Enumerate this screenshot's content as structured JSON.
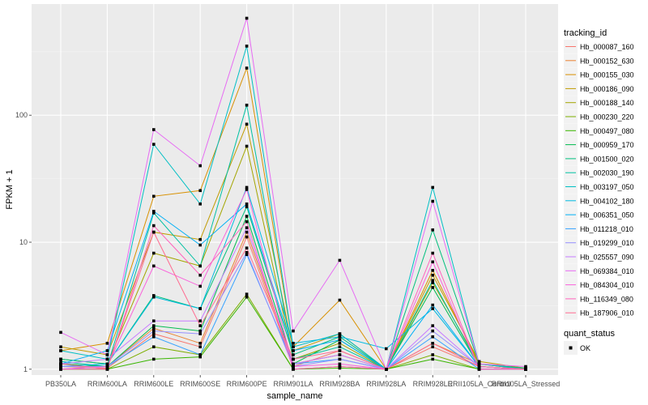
{
  "chart_data": {
    "type": "line",
    "xlabel": "sample_name",
    "ylabel": "FPKM + 1",
    "y_scale": "log10",
    "ylim": [
      0.9,
      750
    ],
    "y_ticks": [
      1,
      10,
      100
    ],
    "y_tick_labels": [
      "1",
      "10",
      "100"
    ],
    "grid": true,
    "legend_position": "right",
    "categories": [
      "PB350LA",
      "RRIM600LA",
      "RRIM600LE",
      "RRIM600SE",
      "RRIM600PE",
      "RRIM901LA",
      "RRIM928BA",
      "RRIM928LA",
      "RRIM928LE",
      "RRII105LA_Control",
      "RRII105LA_Stressed"
    ],
    "legend_title": "tracking_id",
    "shape_legend_title": "quant_status",
    "shape_legend_label": "OK",
    "series": [
      {
        "name": "Hb_000087_160",
        "color": "#F8766D",
        "values": [
          1.05,
          1.02,
          1.9,
          1.5,
          11.0,
          1.05,
          1.4,
          1.0,
          1.5,
          1.05,
          1.0
        ]
      },
      {
        "name": "Hb_000152_630",
        "color": "#EA8331",
        "values": [
          1.1,
          1.05,
          2.1,
          1.6,
          12.0,
          1.1,
          1.3,
          1.0,
          1.6,
          1.1,
          1.02
        ]
      },
      {
        "name": "Hb_000155_030",
        "color": "#D89000",
        "values": [
          1.4,
          1.6,
          23.0,
          25.5,
          235.0,
          1.5,
          3.5,
          1.0,
          6.0,
          1.1,
          1.0
        ]
      },
      {
        "name": "Hb_000186_090",
        "color": "#C09B00",
        "values": [
          1.5,
          1.3,
          12.0,
          10.5,
          85.0,
          1.4,
          1.9,
          1.0,
          5.5,
          1.15,
          1.02
        ]
      },
      {
        "name": "Hb_000188_140",
        "color": "#A3A500",
        "values": [
          1.2,
          1.1,
          8.2,
          6.5,
          57.0,
          1.2,
          1.6,
          1.0,
          4.8,
          1.1,
          1.0
        ]
      },
      {
        "name": "Hb_000230_220",
        "color": "#7CAE00",
        "values": [
          1.0,
          1.0,
          1.5,
          1.3,
          3.9,
          1.0,
          1.05,
          1.0,
          1.3,
          1.0,
          1.0
        ]
      },
      {
        "name": "Hb_000497_080",
        "color": "#39B600",
        "values": [
          1.0,
          1.0,
          1.2,
          1.25,
          3.7,
          1.0,
          1.02,
          1.0,
          1.2,
          1.0,
          1.0
        ]
      },
      {
        "name": "Hb_000959_170",
        "color": "#00BB4E",
        "values": [
          1.1,
          1.05,
          2.2,
          2.0,
          16.0,
          1.1,
          1.7,
          1.0,
          4.4,
          1.05,
          1.0
        ]
      },
      {
        "name": "Hb_001500_020",
        "color": "#00BF7D",
        "values": [
          1.2,
          1.1,
          3.8,
          3.0,
          19.0,
          1.3,
          1.8,
          1.0,
          12.5,
          1.1,
          1.02
        ]
      },
      {
        "name": "Hb_002030_190",
        "color": "#00C1A3",
        "values": [
          1.15,
          1.05,
          17.0,
          6.5,
          120.0,
          1.2,
          1.5,
          1.0,
          5.0,
          1.05,
          1.0
        ]
      },
      {
        "name": "Hb_003197_050",
        "color": "#00BFC4",
        "values": [
          1.4,
          1.2,
          59.0,
          20.0,
          350.0,
          1.5,
          1.9,
          1.0,
          27.0,
          1.1,
          1.0
        ]
      },
      {
        "name": "Hb_004102_180",
        "color": "#00BAE0",
        "values": [
          1.05,
          1.1,
          3.7,
          3.0,
          27.0,
          1.6,
          1.8,
          1.45,
          3.0,
          1.05,
          1.0
        ]
      },
      {
        "name": "Hb_006351_050",
        "color": "#00B0F6",
        "values": [
          1.1,
          1.4,
          17.5,
          9.5,
          20.0,
          1.4,
          1.7,
          1.0,
          3.2,
          1.05,
          1.0
        ]
      },
      {
        "name": "Hb_011218_010",
        "color": "#35A2FF",
        "values": [
          1.0,
          1.05,
          1.8,
          1.3,
          8.0,
          1.1,
          1.2,
          1.0,
          1.8,
          1.0,
          1.0
        ]
      },
      {
        "name": "Hb_019299_010",
        "color": "#9590FF",
        "values": [
          1.05,
          1.05,
          2.0,
          1.9,
          8.3,
          1.05,
          1.2,
          1.0,
          2.0,
          1.05,
          1.0
        ]
      },
      {
        "name": "Hb_025557_090",
        "color": "#C77CFF",
        "values": [
          1.1,
          1.2,
          2.4,
          2.4,
          13.0,
          1.1,
          1.3,
          1.0,
          2.2,
          1.05,
          1.0
        ]
      },
      {
        "name": "Hb_069384_010",
        "color": "#E76BF3",
        "values": [
          1.95,
          1.3,
          77.0,
          40.0,
          580.0,
          2.0,
          7.2,
          1.0,
          21.0,
          1.1,
          1.05
        ]
      },
      {
        "name": "Hb_084304_010",
        "color": "#FA62DB",
        "values": [
          1.0,
          1.05,
          6.5,
          4.5,
          26.0,
          1.05,
          1.1,
          1.0,
          7.0,
          1.0,
          1.0
        ]
      },
      {
        "name": "Hb_116349_080",
        "color": "#FF62BC",
        "values": [
          1.0,
          1.0,
          13.5,
          5.5,
          14.5,
          1.0,
          1.05,
          1.0,
          8.2,
          1.0,
          1.0
        ]
      },
      {
        "name": "Hb_187906_010",
        "color": "#FF6C91",
        "values": [
          1.1,
          1.0,
          12.0,
          2.2,
          9.0,
          1.2,
          1.4,
          1.0,
          1.6,
          1.05,
          1.0
        ]
      }
    ]
  }
}
